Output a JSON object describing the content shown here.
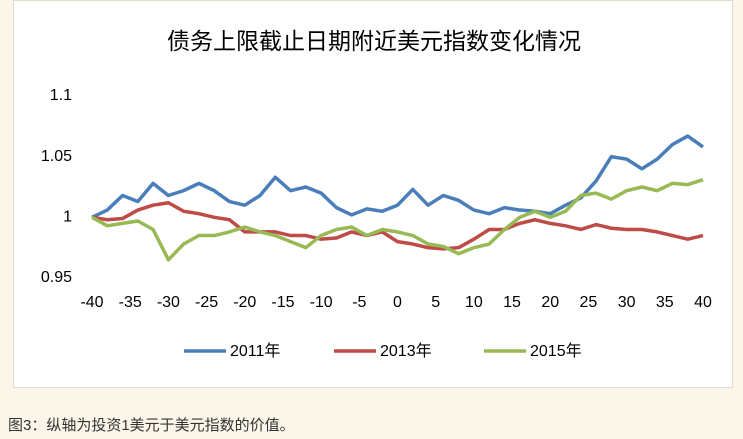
{
  "chart_data": {
    "type": "line",
    "title": "债务上限截止日期附近美元指数变化情况",
    "x": [
      -40,
      -38,
      -36,
      -34,
      -32,
      -30,
      -28,
      -26,
      -24,
      -22,
      -20,
      -18,
      -16,
      -14,
      -12,
      -10,
      -8,
      -6,
      -4,
      -2,
      0,
      2,
      4,
      6,
      8,
      10,
      12,
      14,
      16,
      18,
      20,
      22,
      24,
      26,
      28,
      30,
      32,
      34,
      36,
      38,
      40
    ],
    "series": [
      {
        "name": "2011年",
        "color": "#4a7ebb",
        "values": [
          1.0,
          1.006,
          1.018,
          1.013,
          1.028,
          1.018,
          1.022,
          1.028,
          1.022,
          1.013,
          1.01,
          1.018,
          1.033,
          1.022,
          1.025,
          1.02,
          1.008,
          1.002,
          1.007,
          1.005,
          1.01,
          1.023,
          1.01,
          1.018,
          1.014,
          1.006,
          1.003,
          1.008,
          1.006,
          1.005,
          1.003,
          1.01,
          1.016,
          1.03,
          1.05,
          1.048,
          1.04,
          1.048,
          1.06,
          1.067,
          1.058
        ]
      },
      {
        "name": "2013年",
        "color": "#be4b48",
        "values": [
          1.0,
          0.998,
          0.999,
          1.006,
          1.01,
          1.012,
          1.005,
          1.003,
          1.0,
          0.998,
          0.988,
          0.988,
          0.988,
          0.985,
          0.985,
          0.982,
          0.983,
          0.988,
          0.985,
          0.988,
          0.98,
          0.978,
          0.975,
          0.974,
          0.975,
          0.982,
          0.99,
          0.99,
          0.995,
          0.998,
          0.995,
          0.993,
          0.99,
          0.994,
          0.991,
          0.99,
          0.99,
          0.988,
          0.985,
          0.982,
          0.985
        ]
      },
      {
        "name": "2015年",
        "color": "#98b954",
        "values": [
          1.0,
          0.993,
          0.995,
          0.997,
          0.99,
          0.965,
          0.978,
          0.985,
          0.985,
          0.988,
          0.992,
          0.988,
          0.985,
          0.98,
          0.975,
          0.985,
          0.99,
          0.992,
          0.985,
          0.99,
          0.988,
          0.985,
          0.978,
          0.976,
          0.97,
          0.975,
          0.978,
          0.99,
          1.0,
          1.005,
          1.0,
          1.005,
          1.018,
          1.02,
          1.015,
          1.022,
          1.025,
          1.022,
          1.028,
          1.027,
          1.031
        ]
      }
    ],
    "xlim": [
      -40,
      40
    ],
    "xticks": [
      -40,
      -35,
      -30,
      -25,
      -20,
      -15,
      -10,
      -5,
      0,
      5,
      10,
      15,
      20,
      25,
      30,
      35,
      40
    ],
    "ylim": [
      0.95,
      1.1
    ],
    "yticks": [
      0.95,
      1,
      1.05,
      1.1
    ],
    "legend": "bottom"
  },
  "caption": "图3：纵轴为投资1美元于美元指数的价值。"
}
